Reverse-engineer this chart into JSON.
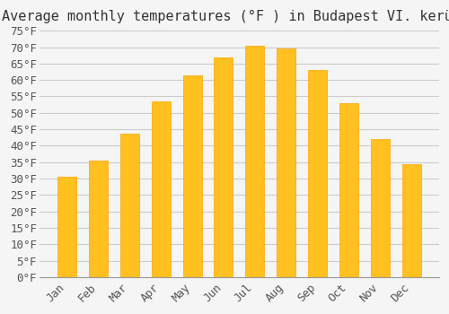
{
  "title": "Average monthly temperatures (°F ) in Budapest VI. kerület",
  "months": [
    "Jan",
    "Feb",
    "Mar",
    "Apr",
    "May",
    "Jun",
    "Jul",
    "Aug",
    "Sep",
    "Oct",
    "Nov",
    "Dec"
  ],
  "values": [
    30.5,
    35.5,
    43.7,
    53.5,
    61.5,
    67.0,
    70.5,
    69.5,
    63.0,
    53.0,
    42.0,
    34.5
  ],
  "bar_color": "#FFC020",
  "bar_edge_color": "#FFA500",
  "background_color": "#F5F5F5",
  "grid_color": "#CCCCCC",
  "text_color": "#555555",
  "ylim": [
    0,
    75
  ],
  "yticks": [
    0,
    5,
    10,
    15,
    20,
    25,
    30,
    35,
    40,
    45,
    50,
    55,
    60,
    65,
    70,
    75
  ],
  "title_fontsize": 11,
  "tick_fontsize": 9
}
